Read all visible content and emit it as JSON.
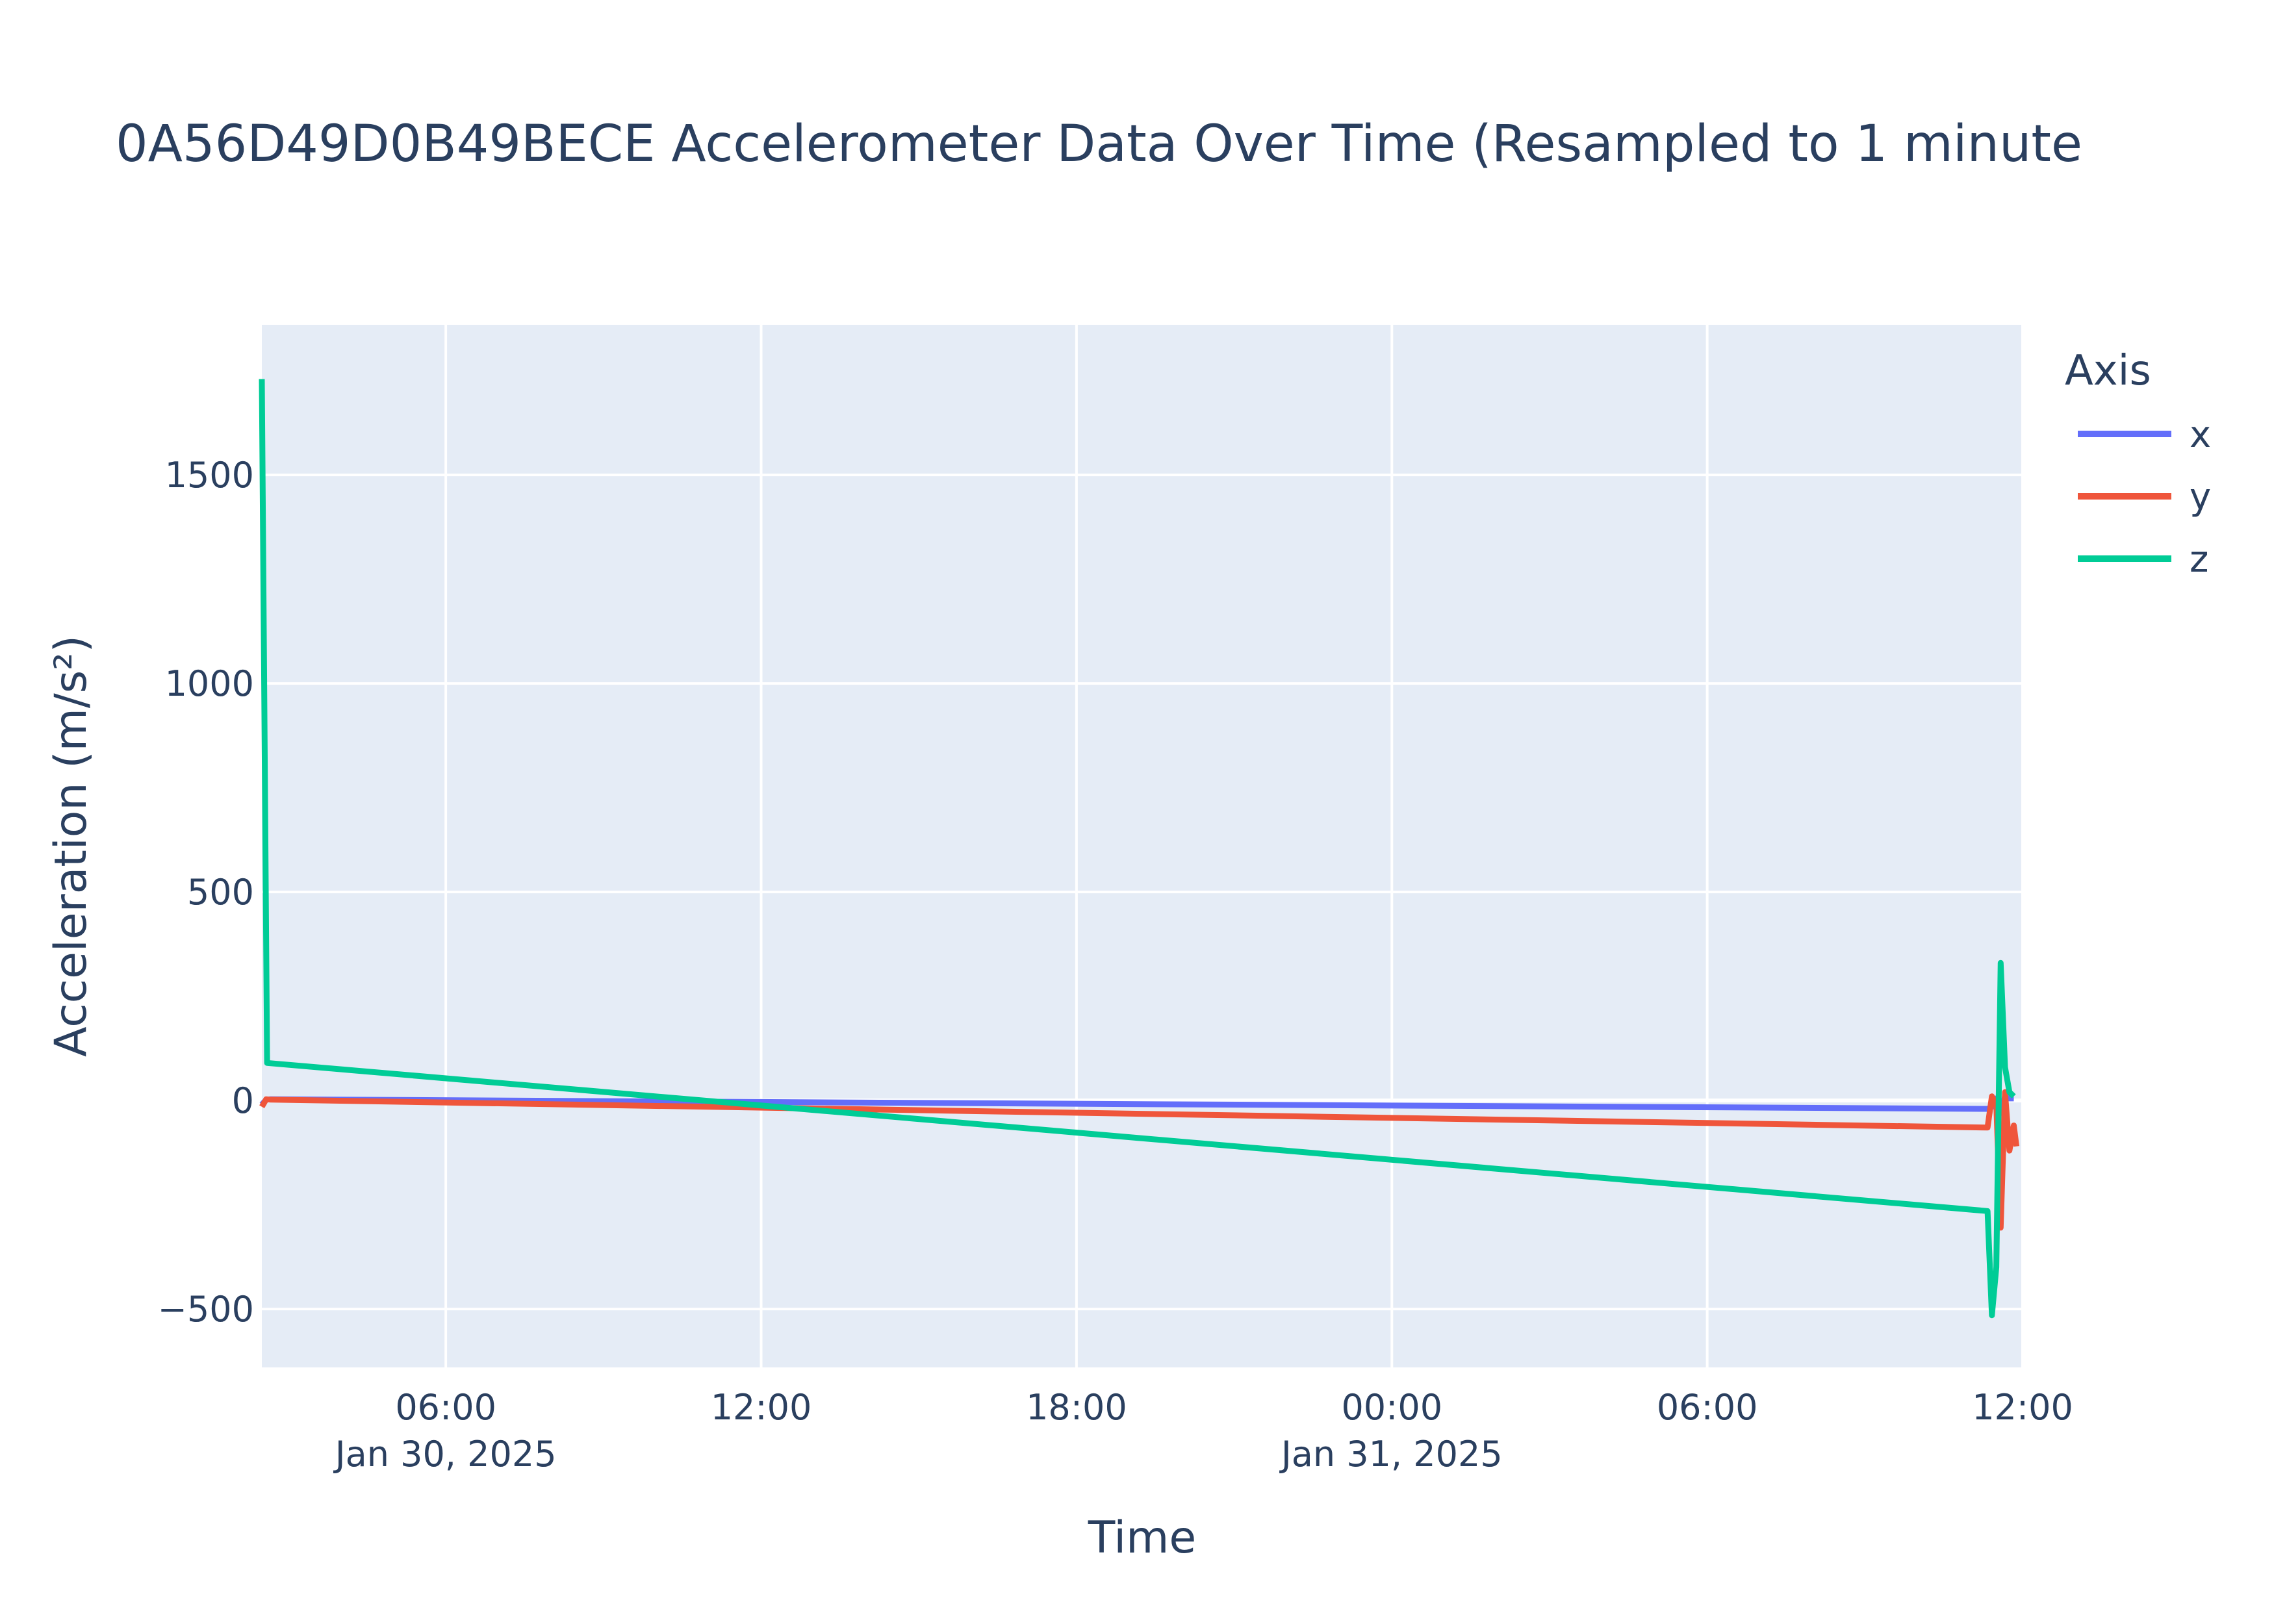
{
  "chart_data": {
    "type": "line",
    "title": "0A56D49D0B49BECE Accelerometer Data Over Time (Resampled to 1 minute",
    "xlabel": "Time",
    "ylabel": "Acceleration (m/s²)",
    "x_range": [
      "2025-01-30T02:30",
      "2025-01-31T12:00"
    ],
    "y_range": [
      -640,
      1860
    ],
    "x_ticks": [
      {
        "t": "2025-01-30T06:00",
        "label": "06:00",
        "sublabel": "Jan 30, 2025"
      },
      {
        "t": "2025-01-30T12:00",
        "label": "12:00",
        "sublabel": ""
      },
      {
        "t": "2025-01-30T18:00",
        "label": "18:00",
        "sublabel": ""
      },
      {
        "t": "2025-01-31T00:00",
        "label": "00:00",
        "sublabel": "Jan 31, 2025"
      },
      {
        "t": "2025-01-31T06:00",
        "label": "06:00",
        "sublabel": ""
      },
      {
        "t": "2025-01-31T12:00",
        "label": "12:00",
        "sublabel": ""
      }
    ],
    "y_ticks": [
      {
        "v": 1500,
        "label": "1500"
      },
      {
        "v": 1000,
        "label": "1000"
      },
      {
        "v": 500,
        "label": "500"
      },
      {
        "v": 0,
        "label": "0"
      },
      {
        "v": -500,
        "label": "−500"
      }
    ],
    "grid": true,
    "legend": {
      "title": "Axis",
      "position": "top-right"
    },
    "series": [
      {
        "name": "x",
        "color": "#636efa",
        "points": [
          [
            "2025-01-30T02:30",
            -10
          ],
          [
            "2025-01-30T02:35",
            2
          ],
          [
            "2025-01-30T02:40",
            3
          ],
          [
            "2025-01-31T11:20",
            -20
          ],
          [
            "2025-01-31T11:25",
            -15
          ],
          [
            "2025-01-31T11:30",
            5
          ],
          [
            "2025-01-31T11:35",
            -30
          ],
          [
            "2025-01-31T11:40",
            10
          ],
          [
            "2025-01-31T11:45",
            5
          ],
          [
            "2025-01-31T11:50",
            5
          ]
        ]
      },
      {
        "name": "y",
        "color": "#ef553b",
        "points": [
          [
            "2025-01-30T02:30",
            -15
          ],
          [
            "2025-01-30T02:35",
            3
          ],
          [
            "2025-01-30T02:40",
            2
          ],
          [
            "2025-01-31T11:20",
            -65
          ],
          [
            "2025-01-31T11:25",
            10
          ],
          [
            "2025-01-31T11:30",
            -10
          ],
          [
            "2025-01-31T11:35",
            -305
          ],
          [
            "2025-01-31T11:40",
            20
          ],
          [
            "2025-01-31T11:45",
            -120
          ],
          [
            "2025-01-31T11:50",
            -60
          ],
          [
            "2025-01-31T11:53",
            -110
          ]
        ]
      },
      {
        "name": "z",
        "color": "#00cc96",
        "points": [
          [
            "2025-01-30T02:30",
            1730
          ],
          [
            "2025-01-30T02:36",
            90
          ],
          [
            "2025-01-31T11:20",
            -265
          ],
          [
            "2025-01-31T11:25",
            -515
          ],
          [
            "2025-01-31T11:30",
            -400
          ],
          [
            "2025-01-31T11:35",
            330
          ],
          [
            "2025-01-31T11:40",
            80
          ],
          [
            "2025-01-31T11:45",
            20
          ],
          [
            "2025-01-31T11:50",
            10
          ]
        ]
      }
    ]
  }
}
